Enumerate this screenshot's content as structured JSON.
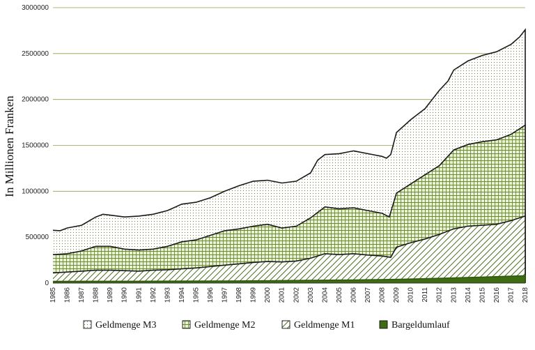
{
  "chart_data": {
    "type": "area",
    "stacked": false,
    "ylabel": "In Millionen Franken",
    "xlabel": "",
    "ylim": [
      0,
      3000000
    ],
    "yticks": [
      "3000000",
      "2500000",
      "2000000",
      "1500000",
      "1000000",
      "500000",
      "0"
    ],
    "xlim": [
      1985,
      2018
    ],
    "xticks": [
      "1985",
      "1986",
      "1987",
      "1988",
      "1989",
      "1990",
      "1991",
      "1992",
      "1993",
      "1994",
      "1995",
      "1996",
      "1997",
      "1998",
      "1999",
      "2000",
      "2001",
      "2002",
      "2003",
      "2004",
      "2005",
      "2006",
      "2007",
      "2008",
      "2009",
      "2010",
      "2011",
      "2012",
      "2013",
      "2014",
      "2015",
      "2016",
      "2017",
      "2018"
    ],
    "grid": "horizontal",
    "legend_position": "bottom",
    "series": [
      {
        "name": "Geldmenge M3",
        "pattern": "dots",
        "x": [
          1985,
          1985.5,
          1986,
          1987,
          1988,
          1988.5,
          1989,
          1990,
          1991,
          1992,
          1993,
          1994,
          1995,
          1996,
          1997,
          1998,
          1999,
          2000,
          2001,
          2002,
          2003,
          2003.5,
          2004,
          2005,
          2006,
          2007,
          2008,
          2008.3,
          2008.6,
          2009,
          2010,
          2011,
          2012,
          2012.6,
          2013,
          2014,
          2015,
          2016,
          2017,
          2017.6,
          2018
        ],
        "values": [
          575000,
          570000,
          600000,
          630000,
          720000,
          750000,
          740000,
          720000,
          730000,
          750000,
          790000,
          860000,
          880000,
          930000,
          1000000,
          1060000,
          1110000,
          1120000,
          1090000,
          1110000,
          1200000,
          1340000,
          1400000,
          1410000,
          1440000,
          1410000,
          1380000,
          1360000,
          1400000,
          1640000,
          1780000,
          1900000,
          2100000,
          2200000,
          2320000,
          2420000,
          2480000,
          2520000,
          2600000,
          2680000,
          2760000
        ]
      },
      {
        "name": "Geldmenge M2",
        "pattern": "grid",
        "x": [
          1985,
          1986,
          1987,
          1988,
          1989,
          1990,
          1991,
          1992,
          1993,
          1994,
          1995,
          1996,
          1997,
          1998,
          1999,
          2000,
          2001,
          2002,
          2003,
          2004,
          2005,
          2006,
          2007,
          2008,
          2008.5,
          2009,
          2010,
          2011,
          2012,
          2013,
          2014,
          2015,
          2016,
          2017,
          2018
        ],
        "values": [
          310000,
          320000,
          350000,
          400000,
          400000,
          370000,
          360000,
          370000,
          400000,
          450000,
          470000,
          520000,
          570000,
          590000,
          620000,
          640000,
          600000,
          620000,
          710000,
          830000,
          810000,
          820000,
          790000,
          760000,
          720000,
          980000,
          1080000,
          1180000,
          1280000,
          1450000,
          1510000,
          1540000,
          1560000,
          1620000,
          1720000
        ]
      },
      {
        "name": "Geldmenge M1",
        "pattern": "diagonal",
        "x": [
          1985,
          1986,
          1987,
          1988,
          1989,
          1990,
          1991,
          1992,
          1993,
          1994,
          1995,
          1996,
          1997,
          1998,
          1999,
          2000,
          2001,
          2002,
          2003,
          2004,
          2005,
          2006,
          2007,
          2008,
          2008.6,
          2009,
          2010,
          2011,
          2012,
          2013,
          2014,
          2015,
          2016,
          2017,
          2018
        ],
        "values": [
          110000,
          120000,
          130000,
          140000,
          140000,
          135000,
          130000,
          140000,
          145000,
          155000,
          165000,
          180000,
          195000,
          210000,
          225000,
          235000,
          230000,
          240000,
          270000,
          320000,
          310000,
          320000,
          305000,
          295000,
          280000,
          390000,
          440000,
          480000,
          530000,
          590000,
          620000,
          630000,
          640000,
          680000,
          730000
        ]
      },
      {
        "name": "Bargeldumlauf",
        "pattern": "solid",
        "x": [
          1985,
          1988,
          1991,
          1994,
          1997,
          2000,
          2003,
          2006,
          2009,
          2012,
          2015,
          2018
        ],
        "values": [
          18000,
          20000,
          20000,
          21000,
          22000,
          25000,
          30000,
          34000,
          40000,
          52000,
          65000,
          80000
        ]
      }
    ]
  }
}
